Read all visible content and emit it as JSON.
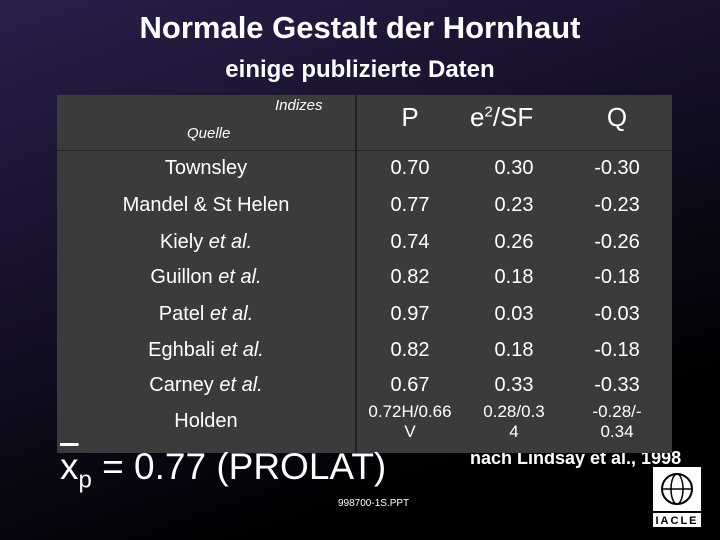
{
  "slide": {
    "title": "Normale Gestalt der Hornhaut",
    "subtitle": "einige publizierte Daten",
    "table": {
      "header": {
        "indices": "Indizes",
        "source": "Quelle",
        "p": "P",
        "e_base": "e",
        "e_sup": "2",
        "e_rest": "/SF",
        "q": "Q"
      },
      "rows": [
        {
          "name": "Townsley",
          "note": null,
          "p": [
            "0.70"
          ],
          "e": [
            "0.30"
          ],
          "q": [
            "-0.30"
          ]
        },
        {
          "name": "Mandel & St Helen",
          "note": null,
          "p": [
            "0.77"
          ],
          "e": [
            "0.23"
          ],
          "q": [
            "-0.23"
          ]
        },
        {
          "name": "Kiely",
          "note": "et al.",
          "p": [
            "0.74"
          ],
          "e": [
            "0.26"
          ],
          "q": [
            "-0.26"
          ]
        },
        {
          "name": "Guillon",
          "note": "et al.",
          "p": [
            "0.82"
          ],
          "e": [
            "0.18"
          ],
          "q": [
            "-0.18"
          ]
        },
        {
          "name": "Patel",
          "note": "et al.",
          "p": [
            "0.97"
          ],
          "e": [
            "0.03"
          ],
          "q": [
            "-0.03"
          ]
        },
        {
          "name": "Eghbali",
          "note": "et al.",
          "p": [
            "0.82"
          ],
          "e": [
            "0.18"
          ],
          "q": [
            "-0.18"
          ]
        },
        {
          "name": "Carney",
          "note": "et al.",
          "p": [
            "0.67"
          ],
          "e": [
            "0.33"
          ],
          "q": [
            "-0.33"
          ]
        },
        {
          "name": "Holden",
          "note": null,
          "p": [
            "0.72H/0.66",
            "V"
          ],
          "e": [
            "0.28/0.3",
            "4"
          ],
          "q": [
            "-0.28/-",
            "0.34"
          ]
        }
      ]
    },
    "mean": {
      "x": "x",
      "sub": "p",
      "rest": "= 0.77  (PROLAT)"
    },
    "citation": "nach Lindsay et al., 1998",
    "file": "998700-1S.PPT",
    "logo": "IACLE"
  }
}
